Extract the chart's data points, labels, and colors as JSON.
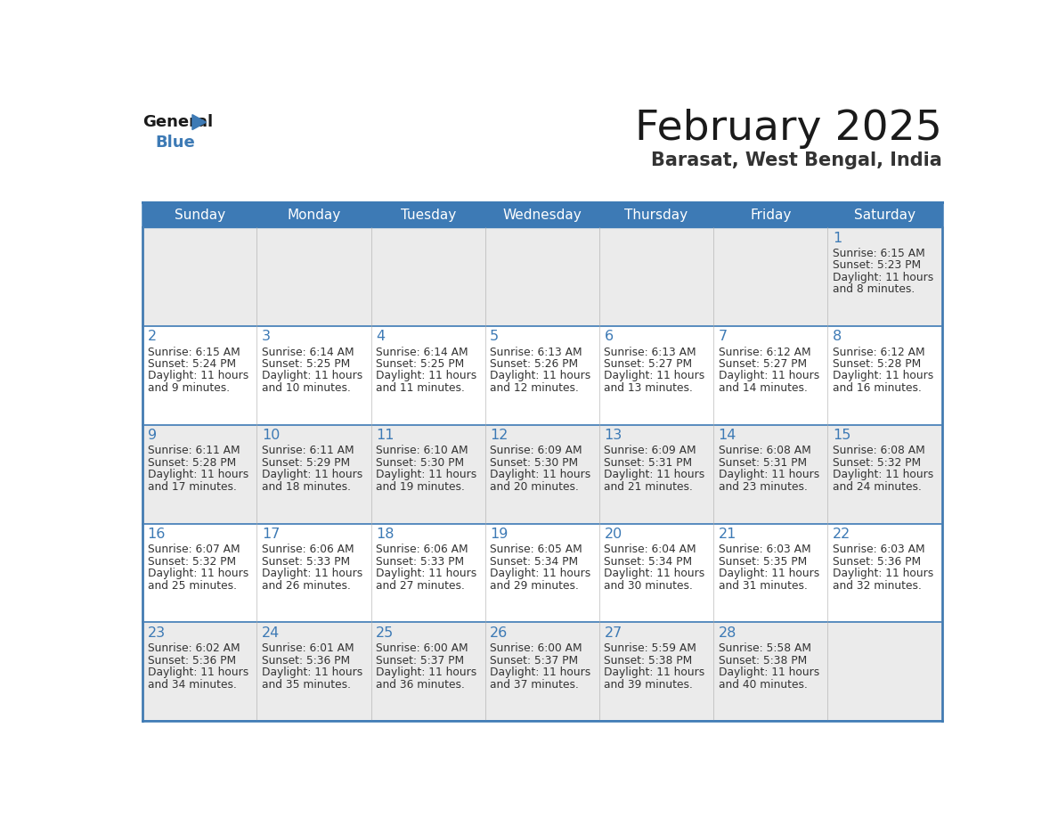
{
  "title": "February 2025",
  "subtitle": "Barasat, West Bengal, India",
  "header_color": "#3d7ab5",
  "header_text_color": "#ffffff",
  "row_bg_odd": "#ebebeb",
  "row_bg_even": "#ffffff",
  "day_number_color": "#3d7ab5",
  "text_color": "#333333",
  "border_color": "#3d7ab5",
  "logo_general_color": "#1a1a1a",
  "logo_blue_color": "#3d7ab5",
  "logo_triangle_color": "#3d7ab5",
  "days_of_week": [
    "Sunday",
    "Monday",
    "Tuesday",
    "Wednesday",
    "Thursday",
    "Friday",
    "Saturday"
  ],
  "weeks": [
    [
      {
        "day": null
      },
      {
        "day": null
      },
      {
        "day": null
      },
      {
        "day": null
      },
      {
        "day": null
      },
      {
        "day": null
      },
      {
        "day": 1,
        "sunrise": "6:15 AM",
        "sunset": "5:23 PM",
        "daylight_line1": "Daylight: 11 hours",
        "daylight_line2": "and 8 minutes."
      }
    ],
    [
      {
        "day": 2,
        "sunrise": "6:15 AM",
        "sunset": "5:24 PM",
        "daylight_line1": "Daylight: 11 hours",
        "daylight_line2": "and 9 minutes."
      },
      {
        "day": 3,
        "sunrise": "6:14 AM",
        "sunset": "5:25 PM",
        "daylight_line1": "Daylight: 11 hours",
        "daylight_line2": "and 10 minutes."
      },
      {
        "day": 4,
        "sunrise": "6:14 AM",
        "sunset": "5:25 PM",
        "daylight_line1": "Daylight: 11 hours",
        "daylight_line2": "and 11 minutes."
      },
      {
        "day": 5,
        "sunrise": "6:13 AM",
        "sunset": "5:26 PM",
        "daylight_line1": "Daylight: 11 hours",
        "daylight_line2": "and 12 minutes."
      },
      {
        "day": 6,
        "sunrise": "6:13 AM",
        "sunset": "5:27 PM",
        "daylight_line1": "Daylight: 11 hours",
        "daylight_line2": "and 13 minutes."
      },
      {
        "day": 7,
        "sunrise": "6:12 AM",
        "sunset": "5:27 PM",
        "daylight_line1": "Daylight: 11 hours",
        "daylight_line2": "and 14 minutes."
      },
      {
        "day": 8,
        "sunrise": "6:12 AM",
        "sunset": "5:28 PM",
        "daylight_line1": "Daylight: 11 hours",
        "daylight_line2": "and 16 minutes."
      }
    ],
    [
      {
        "day": 9,
        "sunrise": "6:11 AM",
        "sunset": "5:28 PM",
        "daylight_line1": "Daylight: 11 hours",
        "daylight_line2": "and 17 minutes."
      },
      {
        "day": 10,
        "sunrise": "6:11 AM",
        "sunset": "5:29 PM",
        "daylight_line1": "Daylight: 11 hours",
        "daylight_line2": "and 18 minutes."
      },
      {
        "day": 11,
        "sunrise": "6:10 AM",
        "sunset": "5:30 PM",
        "daylight_line1": "Daylight: 11 hours",
        "daylight_line2": "and 19 minutes."
      },
      {
        "day": 12,
        "sunrise": "6:09 AM",
        "sunset": "5:30 PM",
        "daylight_line1": "Daylight: 11 hours",
        "daylight_line2": "and 20 minutes."
      },
      {
        "day": 13,
        "sunrise": "6:09 AM",
        "sunset": "5:31 PM",
        "daylight_line1": "Daylight: 11 hours",
        "daylight_line2": "and 21 minutes."
      },
      {
        "day": 14,
        "sunrise": "6:08 AM",
        "sunset": "5:31 PM",
        "daylight_line1": "Daylight: 11 hours",
        "daylight_line2": "and 23 minutes."
      },
      {
        "day": 15,
        "sunrise": "6:08 AM",
        "sunset": "5:32 PM",
        "daylight_line1": "Daylight: 11 hours",
        "daylight_line2": "and 24 minutes."
      }
    ],
    [
      {
        "day": 16,
        "sunrise": "6:07 AM",
        "sunset": "5:32 PM",
        "daylight_line1": "Daylight: 11 hours",
        "daylight_line2": "and 25 minutes."
      },
      {
        "day": 17,
        "sunrise": "6:06 AM",
        "sunset": "5:33 PM",
        "daylight_line1": "Daylight: 11 hours",
        "daylight_line2": "and 26 minutes."
      },
      {
        "day": 18,
        "sunrise": "6:06 AM",
        "sunset": "5:33 PM",
        "daylight_line1": "Daylight: 11 hours",
        "daylight_line2": "and 27 minutes."
      },
      {
        "day": 19,
        "sunrise": "6:05 AM",
        "sunset": "5:34 PM",
        "daylight_line1": "Daylight: 11 hours",
        "daylight_line2": "and 29 minutes."
      },
      {
        "day": 20,
        "sunrise": "6:04 AM",
        "sunset": "5:34 PM",
        "daylight_line1": "Daylight: 11 hours",
        "daylight_line2": "and 30 minutes."
      },
      {
        "day": 21,
        "sunrise": "6:03 AM",
        "sunset": "5:35 PM",
        "daylight_line1": "Daylight: 11 hours",
        "daylight_line2": "and 31 minutes."
      },
      {
        "day": 22,
        "sunrise": "6:03 AM",
        "sunset": "5:36 PM",
        "daylight_line1": "Daylight: 11 hours",
        "daylight_line2": "and 32 minutes."
      }
    ],
    [
      {
        "day": 23,
        "sunrise": "6:02 AM",
        "sunset": "5:36 PM",
        "daylight_line1": "Daylight: 11 hours",
        "daylight_line2": "and 34 minutes."
      },
      {
        "day": 24,
        "sunrise": "6:01 AM",
        "sunset": "5:36 PM",
        "daylight_line1": "Daylight: 11 hours",
        "daylight_line2": "and 35 minutes."
      },
      {
        "day": 25,
        "sunrise": "6:00 AM",
        "sunset": "5:37 PM",
        "daylight_line1": "Daylight: 11 hours",
        "daylight_line2": "and 36 minutes."
      },
      {
        "day": 26,
        "sunrise": "6:00 AM",
        "sunset": "5:37 PM",
        "daylight_line1": "Daylight: 11 hours",
        "daylight_line2": "and 37 minutes."
      },
      {
        "day": 27,
        "sunrise": "5:59 AM",
        "sunset": "5:38 PM",
        "daylight_line1": "Daylight: 11 hours",
        "daylight_line2": "and 39 minutes."
      },
      {
        "day": 28,
        "sunrise": "5:58 AM",
        "sunset": "5:38 PM",
        "daylight_line1": "Daylight: 11 hours",
        "daylight_line2": "and 40 minutes."
      },
      {
        "day": null
      }
    ]
  ]
}
